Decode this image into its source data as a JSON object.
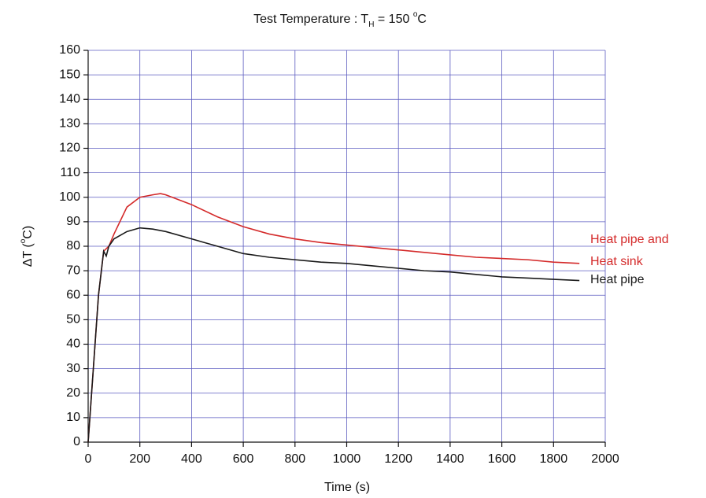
{
  "chart_data": {
    "type": "line",
    "title": [
      "Test Temperature : T",
      "H",
      " = 150 ",
      "o",
      "C"
    ],
    "x_label": "Time (s)",
    "y_label": [
      "ΔT (",
      "o",
      "C)"
    ],
    "xlim": [
      0,
      2000
    ],
    "xticks": [
      0,
      200,
      400,
      600,
      800,
      1000,
      1200,
      1400,
      1600,
      1800,
      2000
    ],
    "ylim": [
      0,
      160
    ],
    "yticks": [
      0,
      10,
      20,
      30,
      40,
      50,
      60,
      70,
      80,
      90,
      100,
      110,
      120,
      130,
      140,
      150,
      160
    ],
    "grid": true,
    "series": [
      {
        "name": [
          "Heat pipe and",
          "Heat sink"
        ],
        "color": "#d42a2a",
        "x": [
          0,
          20,
          40,
          60,
          80,
          100,
          150,
          200,
          250,
          280,
          300,
          400,
          500,
          600,
          700,
          800,
          900,
          1000,
          1100,
          1200,
          1300,
          1400,
          1500,
          1600,
          1700,
          1800,
          1900
        ],
        "values": [
          0,
          30,
          60,
          78,
          80,
          85,
          96,
          100,
          101,
          101.5,
          101,
          97,
          92,
          88,
          85,
          83,
          81.5,
          80.5,
          79.5,
          78.5,
          77.5,
          76.5,
          75.5,
          75,
          74.5,
          73.5,
          73
        ]
      },
      {
        "name": [
          "Heat pipe"
        ],
        "color": "#1a1a1a",
        "x": [
          0,
          20,
          40,
          60,
          70,
          80,
          100,
          150,
          200,
          250,
          300,
          400,
          500,
          600,
          700,
          800,
          900,
          1000,
          1100,
          1200,
          1300,
          1400,
          1500,
          1600,
          1700,
          1800,
          1900
        ],
        "values": [
          0,
          30,
          60,
          78,
          76,
          80,
          83,
          86,
          87.5,
          87,
          86,
          83,
          80,
          77,
          75.5,
          74.5,
          73.5,
          73,
          72,
          71,
          70,
          69.5,
          68.5,
          67.5,
          67,
          66.5,
          66
        ]
      }
    ]
  }
}
